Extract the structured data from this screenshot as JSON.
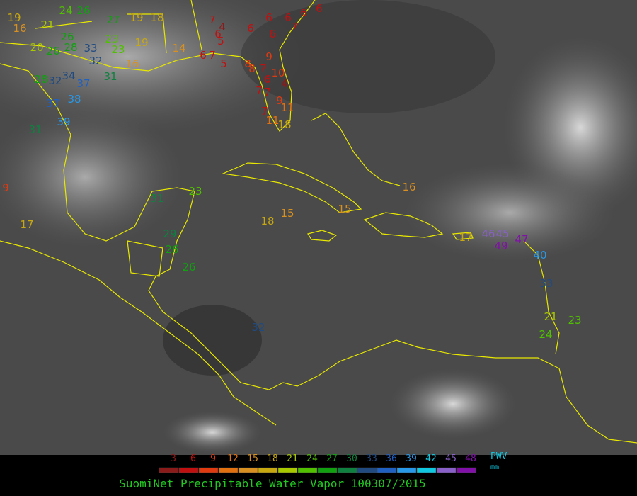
{
  "caption": "SuomiNet Precipitable Water Vapor 100307/2015",
  "legend": {
    "ticks": [
      3,
      6,
      9,
      12,
      15,
      18,
      21,
      24,
      27,
      30,
      33,
      36,
      39,
      42,
      45,
      48
    ],
    "colors": [
      "#8b1a1a",
      "#c01010",
      "#e03a10",
      "#e07010",
      "#d89020",
      "#c8a810",
      "#a8c800",
      "#50c000",
      "#10a010",
      "#108040",
      "#204a80",
      "#2060c0",
      "#2898e8",
      "#10c8e0",
      "#8860c8",
      "#8010a8"
    ],
    "unit_top": "PWV",
    "unit_bottom": "mm"
  },
  "stations": [
    19,
    16,
    21,
    24,
    26,
    27,
    19,
    18,
    23,
    19,
    20,
    26,
    28,
    33,
    32,
    23,
    16,
    26,
    14,
    7,
    4,
    6,
    5,
    6,
    6,
    6,
    6,
    6,
    6,
    7,
    9,
    6,
    7,
    5,
    8,
    8,
    7,
    10,
    6,
    4,
    7,
    7,
    9,
    11,
    7,
    11,
    18,
    31,
    28,
    32,
    34,
    37,
    37,
    38,
    39,
    31,
    9,
    17,
    23,
    31,
    29,
    26,
    26,
    18,
    15,
    15,
    16,
    17,
    46,
    45,
    49,
    47,
    40,
    33,
    21,
    23,
    24,
    32
  ]
}
